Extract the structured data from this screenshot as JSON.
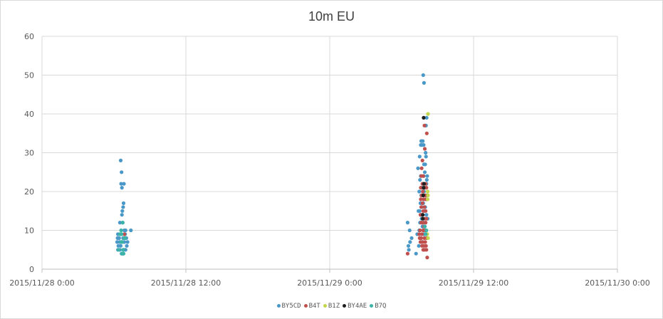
{
  "chart_data": {
    "type": "scatter",
    "title": "10m EU",
    "xlabel": "",
    "ylabel": "",
    "ylim": [
      0,
      60
    ],
    "yticks": [
      "0",
      "10",
      "20",
      "30",
      "40",
      "50",
      "60"
    ],
    "xlim": [
      "2015/11/28 0:00",
      "2015/11/30 0:00"
    ],
    "xticks": [
      "2015/11/28 0:00",
      "2015/11/28 12:00",
      "2015/11/29 0:00",
      "2015/11/29 12:00",
      "2015/11/30 0:00"
    ],
    "grid": true,
    "legend_position": "bottom",
    "series": [
      {
        "name": "BY5CD",
        "color": "#4A98C8",
        "points": [
          [
            "2015/11/28 06:34",
            28
          ],
          [
            "2015/11/28 06:38",
            25
          ],
          [
            "2015/11/28 06:36",
            22
          ],
          [
            "2015/11/28 06:40",
            21
          ],
          [
            "2015/11/28 06:50",
            22
          ],
          [
            "2015/11/28 06:48",
            17
          ],
          [
            "2015/11/28 06:46",
            16
          ],
          [
            "2015/11/28 06:42",
            15
          ],
          [
            "2015/11/28 06:40",
            14
          ],
          [
            "2015/11/28 06:44",
            12
          ],
          [
            "2015/11/28 06:30",
            12
          ],
          [
            "2015/11/28 06:52",
            10
          ],
          [
            "2015/11/28 06:58",
            10
          ],
          [
            "2015/11/28 07:25",
            10
          ],
          [
            "2015/11/28 06:20",
            9
          ],
          [
            "2015/11/28 06:36",
            9
          ],
          [
            "2015/11/28 06:56",
            9
          ],
          [
            "2015/11/28 06:18",
            8
          ],
          [
            "2015/11/28 06:26",
            8
          ],
          [
            "2015/11/28 06:46",
            8
          ],
          [
            "2015/11/28 07:02",
            8
          ],
          [
            "2015/11/28 06:16",
            7
          ],
          [
            "2015/11/28 06:28",
            7
          ],
          [
            "2015/11/28 06:40",
            7
          ],
          [
            "2015/11/28 06:52",
            7
          ],
          [
            "2015/11/28 07:08",
            7
          ],
          [
            "2015/11/28 06:22",
            6
          ],
          [
            "2015/11/28 06:34",
            6
          ],
          [
            "2015/11/28 07:04",
            6
          ],
          [
            "2015/11/28 06:20",
            5
          ],
          [
            "2015/11/28 06:30",
            5
          ],
          [
            "2015/11/28 06:50",
            5
          ],
          [
            "2015/11/28 06:58",
            5
          ],
          [
            "2015/11/28 06:38",
            4
          ],
          [
            "2015/11/28 06:46",
            4
          ],
          [
            "2015/11/29 07:48",
            50
          ],
          [
            "2015/11/29 07:52",
            48
          ],
          [
            "2015/11/29 08:05",
            39
          ],
          [
            "2015/11/29 07:58",
            37
          ],
          [
            "2015/11/29 08:02",
            37
          ],
          [
            "2015/11/29 07:38",
            33
          ],
          [
            "2015/11/29 07:46",
            33
          ],
          [
            "2015/11/29 07:36",
            32
          ],
          [
            "2015/11/29 07:42",
            32
          ],
          [
            "2015/11/29 07:50",
            32
          ],
          [
            "2015/11/29 08:00",
            30
          ],
          [
            "2015/11/29 07:30",
            29
          ],
          [
            "2015/11/29 08:02",
            29
          ],
          [
            "2015/11/29 07:52",
            27
          ],
          [
            "2015/11/29 07:58",
            27
          ],
          [
            "2015/11/29 07:22",
            26
          ],
          [
            "2015/11/29 07:56",
            25
          ],
          [
            "2015/11/29 07:36",
            24
          ],
          [
            "2015/11/29 07:50",
            24
          ],
          [
            "2015/11/29 08:08",
            24
          ],
          [
            "2015/11/29 07:32",
            23
          ],
          [
            "2015/11/29 08:06",
            23
          ],
          [
            "2015/11/29 07:46",
            22
          ],
          [
            "2015/11/29 08:04",
            22
          ],
          [
            "2015/11/29 07:40",
            21
          ],
          [
            "2015/11/29 07:28",
            20
          ],
          [
            "2015/11/29 07:52",
            20
          ],
          [
            "2015/11/29 07:38",
            19
          ],
          [
            "2015/11/29 08:00",
            19
          ],
          [
            "2015/11/29 08:10",
            19
          ],
          [
            "2015/11/29 07:34",
            17
          ],
          [
            "2015/11/29 07:48",
            17
          ],
          [
            "2015/11/29 07:42",
            16
          ],
          [
            "2015/11/29 07:58",
            16
          ],
          [
            "2015/11/29 07:24",
            15
          ],
          [
            "2015/11/29 07:30",
            15
          ],
          [
            "2015/11/29 07:54",
            15
          ],
          [
            "2015/11/29 07:36",
            14
          ],
          [
            "2015/11/29 08:04",
            14
          ],
          [
            "2015/11/29 07:40",
            13
          ],
          [
            "2015/11/29 08:10",
            13
          ],
          [
            "2015/11/29 07:32",
            12
          ],
          [
            "2015/11/29 07:50",
            12
          ],
          [
            "2015/11/29 06:30",
            12
          ],
          [
            "2015/11/29 07:44",
            11
          ],
          [
            "2015/11/29 07:56",
            11
          ],
          [
            "2015/11/29 06:40",
            10
          ],
          [
            "2015/11/29 07:28",
            10
          ],
          [
            "2015/11/29 08:02",
            10
          ],
          [
            "2015/11/29 07:18",
            9
          ],
          [
            "2015/11/29 07:52",
            9
          ],
          [
            "2015/11/29 06:50",
            8
          ],
          [
            "2015/11/29 07:36",
            8
          ],
          [
            "2015/11/29 06:42",
            7
          ],
          [
            "2015/11/29 07:42",
            7
          ],
          [
            "2015/11/29 06:34",
            6
          ],
          [
            "2015/11/29 07:26",
            6
          ],
          [
            "2015/11/29 06:36",
            5
          ],
          [
            "2015/11/29 07:50",
            5
          ],
          [
            "2015/11/29 07:12",
            4
          ]
        ]
      },
      {
        "name": "B4T",
        "color": "#C0504D",
        "points": [
          [
            "2015/11/28 06:52",
            9
          ],
          [
            "2015/11/29 07:54",
            37
          ],
          [
            "2015/11/29 08:06",
            35
          ],
          [
            "2015/11/29 07:56",
            31
          ],
          [
            "2015/11/29 07:44",
            28
          ],
          [
            "2015/11/29 07:40",
            26
          ],
          [
            "2015/11/29 07:38",
            24
          ],
          [
            "2015/11/29 07:48",
            24
          ],
          [
            "2015/11/29 07:44",
            22
          ],
          [
            "2015/11/29 08:00",
            22
          ],
          [
            "2015/11/29 07:36",
            21
          ],
          [
            "2015/11/29 07:56",
            21
          ],
          [
            "2015/11/29 08:04",
            21
          ],
          [
            "2015/11/29 07:46",
            20
          ],
          [
            "2015/11/29 07:40",
            19
          ],
          [
            "2015/11/29 07:58",
            19
          ],
          [
            "2015/11/29 07:36",
            18
          ],
          [
            "2015/11/29 07:50",
            18
          ],
          [
            "2015/11/29 08:02",
            18
          ],
          [
            "2015/11/29 07:44",
            17
          ],
          [
            "2015/11/29 07:38",
            16
          ],
          [
            "2015/11/29 07:54",
            16
          ],
          [
            "2015/11/29 07:48",
            15
          ],
          [
            "2015/11/29 08:00",
            15
          ],
          [
            "2015/11/29 07:34",
            14
          ],
          [
            "2015/11/29 07:42",
            14
          ],
          [
            "2015/11/29 07:56",
            13
          ],
          [
            "2015/11/29 08:04",
            13
          ],
          [
            "2015/11/29 07:38",
            12
          ],
          [
            "2015/11/29 07:46",
            12
          ],
          [
            "2015/11/29 08:00",
            12
          ],
          [
            "2015/11/29 07:52",
            11
          ],
          [
            "2015/11/29 07:32",
            10
          ],
          [
            "2015/11/29 07:48",
            10
          ],
          [
            "2015/11/29 07:58",
            10
          ],
          [
            "2015/11/29 07:28",
            9
          ],
          [
            "2015/11/29 07:42",
            9
          ],
          [
            "2015/11/29 08:02",
            9
          ],
          [
            "2015/11/29 07:30",
            8
          ],
          [
            "2015/11/29 07:38",
            8
          ],
          [
            "2015/11/29 07:54",
            8
          ],
          [
            "2015/11/29 08:06",
            8
          ],
          [
            "2015/11/29 07:34",
            7
          ],
          [
            "2015/11/29 07:46",
            7
          ],
          [
            "2015/11/29 07:58",
            7
          ],
          [
            "2015/11/29 07:42",
            6
          ],
          [
            "2015/11/29 07:52",
            6
          ],
          [
            "2015/11/29 08:02",
            6
          ],
          [
            "2015/11/29 07:48",
            5
          ],
          [
            "2015/11/29 07:56",
            5
          ],
          [
            "2015/11/29 08:04",
            5
          ],
          [
            "2015/11/29 06:30",
            4
          ],
          [
            "2015/11/29 08:08",
            3
          ]
        ]
      },
      {
        "name": "B1Z",
        "color": "#C4D64A",
        "points": [
          [
            "2015/11/29 08:12",
            40
          ],
          [
            "2015/11/29 08:10",
            20
          ],
          [
            "2015/11/29 08:12",
            19
          ],
          [
            "2015/11/29 08:10",
            18
          ],
          [
            "2015/11/29 08:08",
            9
          ],
          [
            "2015/11/29 08:12",
            8
          ]
        ]
      },
      {
        "name": "BY4AE",
        "color": "#1F1F1F",
        "points": [
          [
            "2015/11/29 07:50",
            39
          ],
          [
            "2015/11/29 07:52",
            22
          ],
          [
            "2015/11/29 07:50",
            21
          ],
          [
            "2015/11/29 07:48",
            19
          ],
          [
            "2015/11/29 07:46",
            14
          ],
          [
            "2015/11/29 07:46",
            13
          ]
        ]
      },
      {
        "name": "B7Q",
        "color": "#3BB3A6",
        "points": [
          [
            "2015/11/28 06:44",
            12
          ],
          [
            "2015/11/28 06:36",
            10
          ],
          [
            "2015/11/28 06:30",
            9
          ],
          [
            "2015/11/28 06:38",
            9
          ],
          [
            "2015/11/28 06:52",
            8
          ],
          [
            "2015/11/28 06:56",
            8
          ],
          [
            "2015/11/28 06:36",
            7
          ],
          [
            "2015/11/28 06:42",
            7
          ],
          [
            "2015/11/28 06:24",
            5
          ],
          [
            "2015/11/28 06:46",
            5
          ],
          [
            "2015/11/28 06:40",
            4
          ],
          [
            "2015/11/28 06:44",
            4
          ],
          [
            "2015/11/28 06:48",
            4
          ],
          [
            "2015/11/29 07:56",
            11
          ],
          [
            "2015/11/29 08:04",
            10
          ],
          [
            "2015/11/29 08:00",
            9
          ]
        ]
      }
    ]
  }
}
